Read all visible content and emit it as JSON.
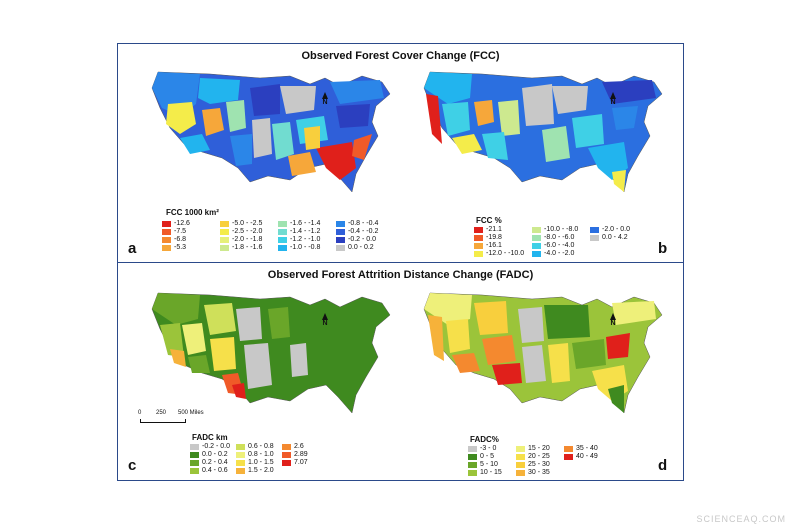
{
  "panels": {
    "top_title": "Observed Forest Cover Change (FCC)",
    "bottom_title": "Observed Forest Attrition Distance Change (FADC)",
    "north_label": "N"
  },
  "maps": {
    "a": {
      "letter": "a",
      "legend_title": "FCC 1000 km²",
      "legend": [
        {
          "label": "-12.6",
          "color": "#e0201b"
        },
        {
          "label": "-7.5",
          "color": "#f05a28"
        },
        {
          "label": "-6.8",
          "color": "#f4892f"
        },
        {
          "label": "-5.3",
          "color": "#f6a73a"
        },
        {
          "label": "-5.0 - -2.5",
          "color": "#f8cf3d"
        },
        {
          "label": "-2.5 - -2.0",
          "color": "#f4ec4a"
        },
        {
          "label": "-2.0 - -1.8",
          "color": "#e6f07a"
        },
        {
          "label": "-1.8 - -1.6",
          "color": "#cde98f"
        },
        {
          "label": "-1.6 - -1.4",
          "color": "#9fe3b0"
        },
        {
          "label": "-1.4 - -1.2",
          "color": "#71dcd0"
        },
        {
          "label": "-1.2 - -1.0",
          "color": "#3fd0e6"
        },
        {
          "label": "-1.0 - -0.8",
          "color": "#22b4ee"
        },
        {
          "label": "-0.8 - -0.4",
          "color": "#2b86e8"
        },
        {
          "label": "-0.4 - -0.2",
          "color": "#2f5fd9"
        },
        {
          "label": "-0.2 - 0.0",
          "color": "#2b3fbf"
        },
        {
          "label": "0.0 - 0.2",
          "color": "#c8c8c8"
        }
      ]
    },
    "b": {
      "letter": "b",
      "legend_title": "FCC %",
      "legend": [
        {
          "label": "-21.1",
          "color": "#e0201b"
        },
        {
          "label": "-19.8",
          "color": "#f05a28"
        },
        {
          "label": "-16.1",
          "color": "#f6a73a"
        },
        {
          "label": "-12.0 - -10.0",
          "color": "#f4ec4a"
        },
        {
          "label": "-10.0 - -8.0",
          "color": "#cde98f"
        },
        {
          "label": "-8.0 - -6.0",
          "color": "#9fe3b0"
        },
        {
          "label": "-6.0 - -4.0",
          "color": "#3fd0e6"
        },
        {
          "label": "-4.0 - -2.0",
          "color": "#22b4ee"
        },
        {
          "label": "-2.0 - 0.0",
          "color": "#2b6fe0"
        },
        {
          "label": "0.0 - 4.2",
          "color": "#c8c8c8"
        }
      ]
    },
    "c": {
      "letter": "c",
      "legend_title": "FADC km",
      "scale_labels": [
        "0",
        "250",
        "500 Miles"
      ],
      "legend": [
        {
          "label": "-0.2 - 0.0",
          "color": "#c8c8c8"
        },
        {
          "label": "0.0 - 0.2",
          "color": "#3f8a1f"
        },
        {
          "label": "0.2 - 0.4",
          "color": "#6aa629"
        },
        {
          "label": "0.4 - 0.6",
          "color": "#9bc43a"
        },
        {
          "label": "0.6 - 0.8",
          "color": "#cfe05a"
        },
        {
          "label": "0.8 - 1.0",
          "color": "#eef07a"
        },
        {
          "label": "1.0 - 1.5",
          "color": "#f6e04a"
        },
        {
          "label": "1.5 - 2.0",
          "color": "#f6b23a"
        },
        {
          "label": "2.6",
          "color": "#f4892f"
        },
        {
          "label": "2.89",
          "color": "#f05a28"
        },
        {
          "label": "7.07",
          "color": "#e0201b"
        }
      ]
    },
    "d": {
      "letter": "d",
      "legend_title": "FADC%",
      "legend": [
        {
          "label": "-3 - 0",
          "color": "#c8c8c8"
        },
        {
          "label": "0 - 5",
          "color": "#3f8a1f"
        },
        {
          "label": "5 - 10",
          "color": "#6aa629"
        },
        {
          "label": "10 - 15",
          "color": "#9bc43a"
        },
        {
          "label": "15 - 20",
          "color": "#eef07a"
        },
        {
          "label": "20 - 25",
          "color": "#f6e04a"
        },
        {
          "label": "25 - 30",
          "color": "#f8cf3d"
        },
        {
          "label": "30 - 35",
          "color": "#f6b23a"
        },
        {
          "label": "35 - 40",
          "color": "#f4892f"
        },
        {
          "label": "40 - 49",
          "color": "#e0201b"
        }
      ]
    }
  },
  "watermark": "SCIENCEAQ.COM"
}
